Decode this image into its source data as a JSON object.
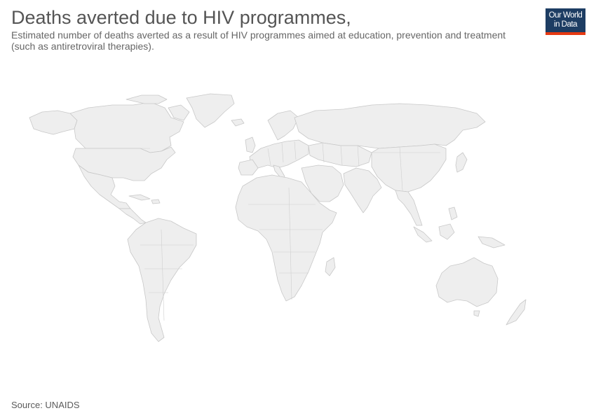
{
  "header": {
    "title": "Deaths averted due to HIV programmes,",
    "subtitle": "Estimated number of deaths averted as a result of HIV programmes aimed at education, prevention and treatment (such as antiretroviral therapies)."
  },
  "logo": {
    "line1": "Our World",
    "line2": "in Data",
    "background_color": "#1d3d63",
    "accent_color": "#e63912"
  },
  "map": {
    "projection": "world",
    "land_color": "#eeeeee",
    "border_color": "#c8c8c8",
    "data_shown": false
  },
  "footer": {
    "source": "Source: UNAIDS"
  }
}
